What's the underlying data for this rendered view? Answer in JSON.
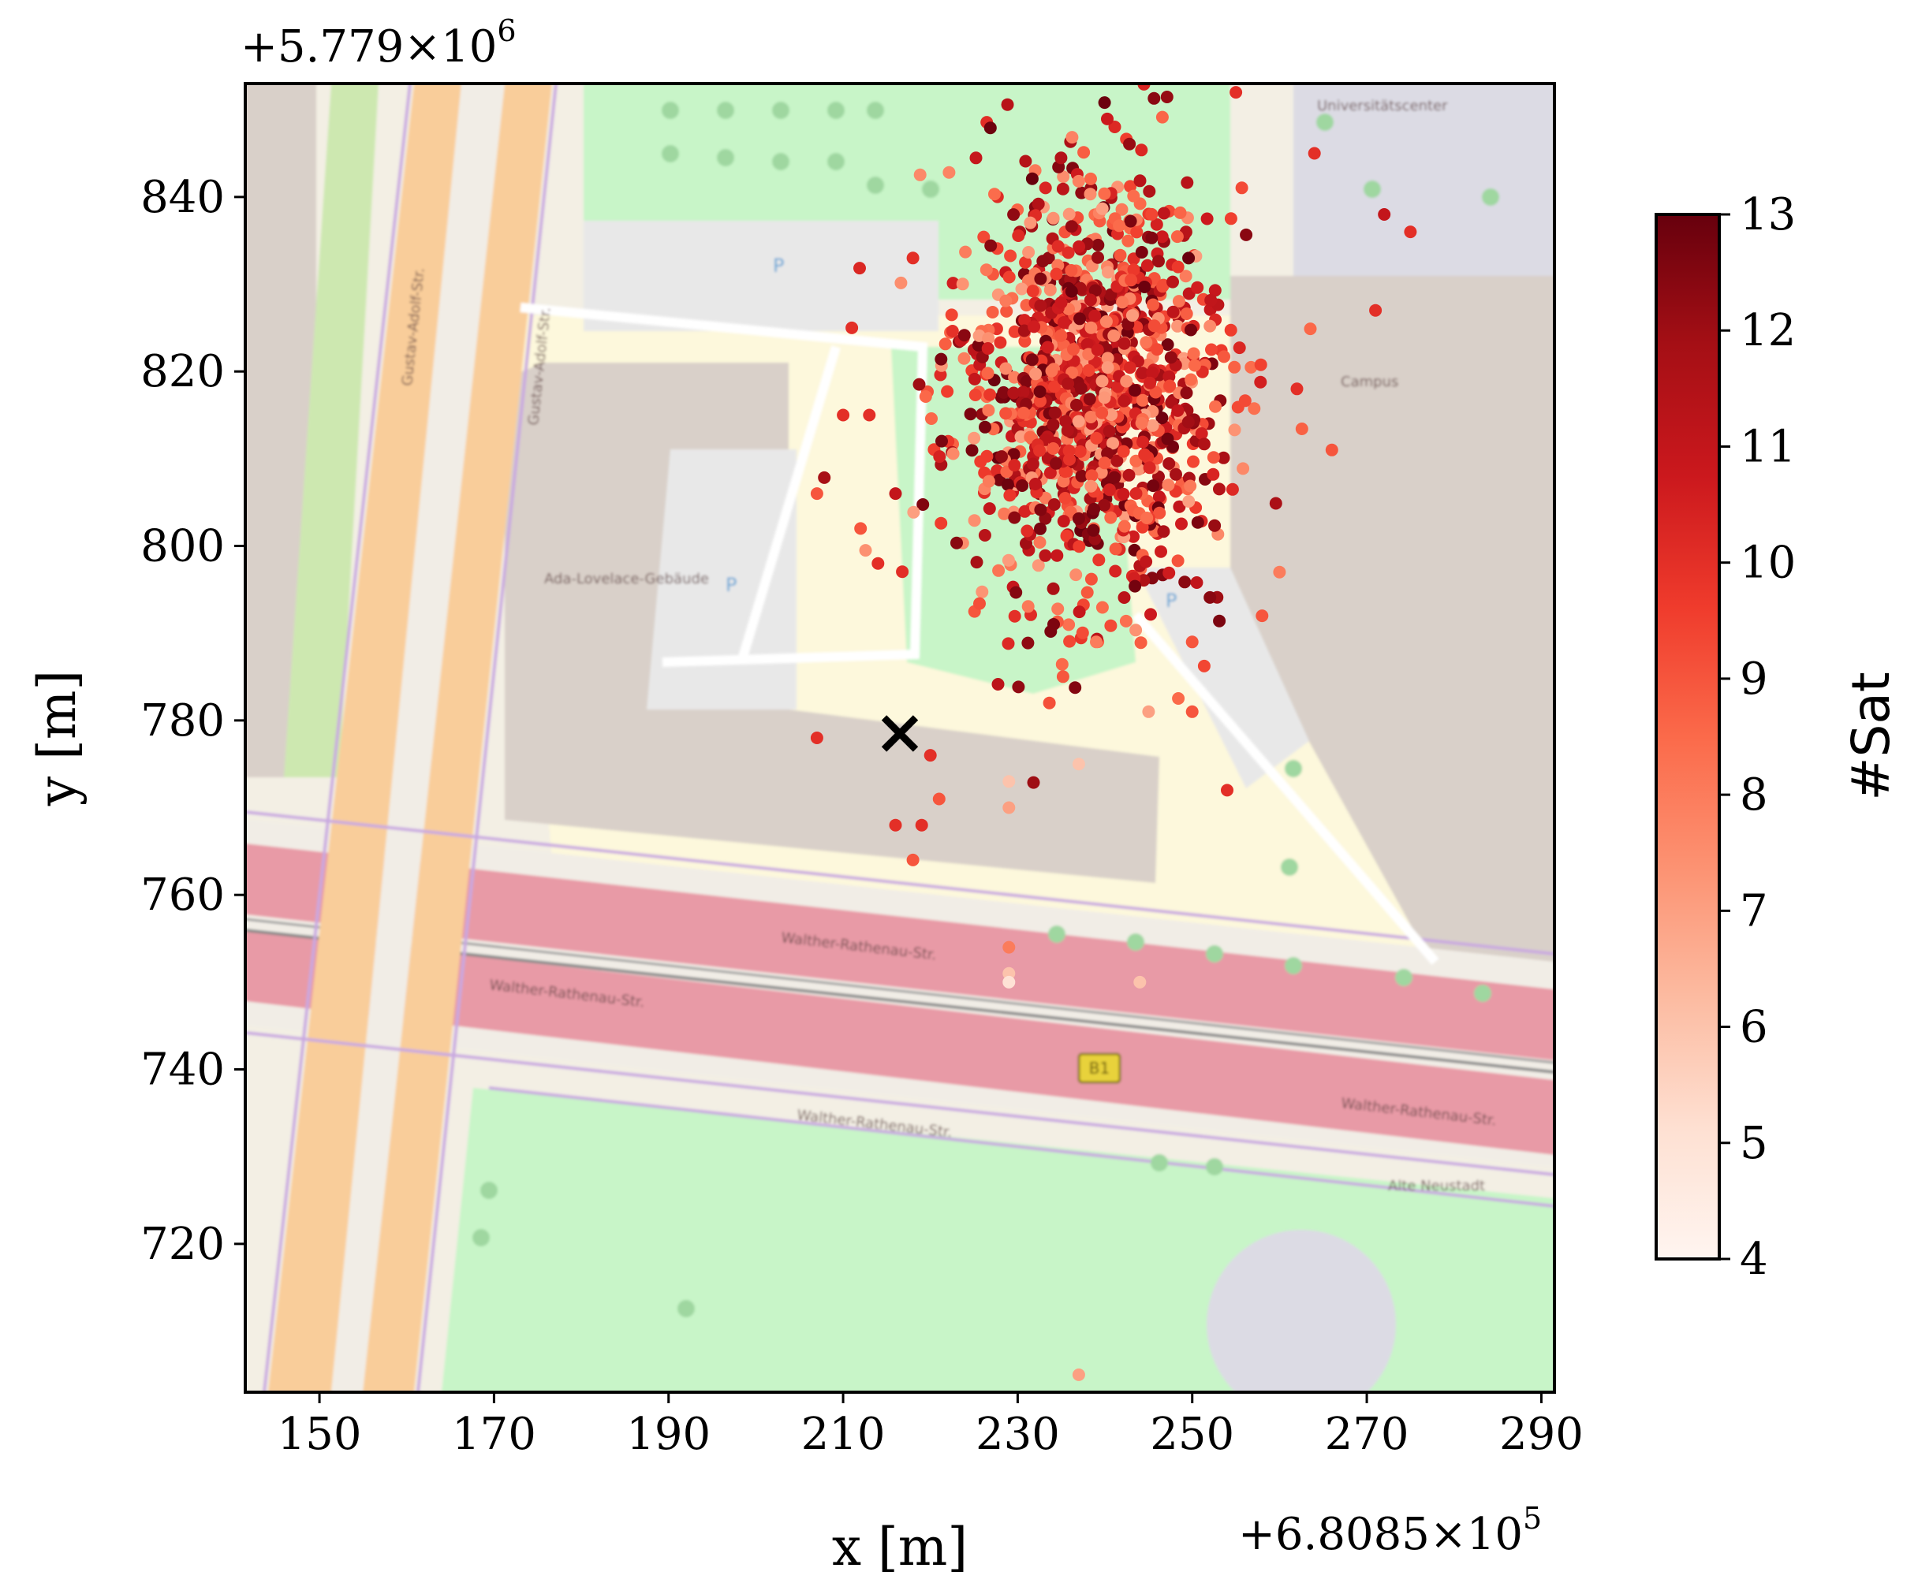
{
  "chart_data": {
    "type": "scatter",
    "xlabel": "x [m]",
    "ylabel": "y [m]",
    "x_offset_text": "+6.8085×10",
    "x_offset_exp": "5",
    "y_offset_text": "+5.779×10",
    "y_offset_exp": "6",
    "xlim": [
      141.5,
      291.5
    ],
    "ylim": [
      703,
      853
    ],
    "xticks": [
      150,
      170,
      190,
      210,
      230,
      250,
      270,
      290
    ],
    "yticks": [
      720,
      740,
      760,
      780,
      800,
      820,
      840
    ],
    "colorbar": {
      "label": "#Sat",
      "cmap": "Reds",
      "range": [
        4,
        13
      ],
      "ticks": [
        4,
        5,
        6,
        7,
        8,
        9,
        10,
        11,
        12,
        13
      ]
    },
    "reference_marker": {
      "symbol": "x",
      "x": 216.5,
      "y": 778.5
    },
    "cluster": {
      "center": [
        238,
        818
      ],
      "std": [
        7.5,
        12
      ],
      "count": 1150,
      "sat_range": [
        7,
        13
      ]
    },
    "outliers": [
      {
        "x": 207,
        "y": 778,
        "sat": 10
      },
      {
        "x": 216,
        "y": 768,
        "sat": 10
      },
      {
        "x": 219,
        "y": 768,
        "sat": 10
      },
      {
        "x": 218,
        "y": 764,
        "sat": 9
      },
      {
        "x": 220,
        "y": 776,
        "sat": 10
      },
      {
        "x": 221,
        "y": 771,
        "sat": 9
      },
      {
        "x": 229,
        "y": 773,
        "sat": 6
      },
      {
        "x": 229,
        "y": 770,
        "sat": 7
      },
      {
        "x": 237,
        "y": 775,
        "sat": 6
      },
      {
        "x": 237,
        "y": 705,
        "sat": 7
      },
      {
        "x": 229,
        "y": 754,
        "sat": 8
      },
      {
        "x": 229,
        "y": 751,
        "sat": 6
      },
      {
        "x": 229,
        "y": 750,
        "sat": 5
      },
      {
        "x": 244,
        "y": 750,
        "sat": 6
      },
      {
        "x": 254,
        "y": 772,
        "sat": 10
      },
      {
        "x": 210,
        "y": 815,
        "sat": 10
      },
      {
        "x": 207,
        "y": 806,
        "sat": 9
      },
      {
        "x": 213,
        "y": 815,
        "sat": 10
      },
      {
        "x": 216,
        "y": 806,
        "sat": 11
      },
      {
        "x": 214,
        "y": 798,
        "sat": 10
      },
      {
        "x": 212,
        "y": 802,
        "sat": 9
      },
      {
        "x": 218,
        "y": 833,
        "sat": 10
      },
      {
        "x": 211,
        "y": 825,
        "sat": 10
      },
      {
        "x": 272,
        "y": 838,
        "sat": 11
      },
      {
        "x": 275,
        "y": 836,
        "sat": 10
      },
      {
        "x": 271,
        "y": 827,
        "sat": 10
      },
      {
        "x": 266,
        "y": 811,
        "sat": 9
      },
      {
        "x": 262,
        "y": 818,
        "sat": 10
      },
      {
        "x": 264,
        "y": 845,
        "sat": 10
      },
      {
        "x": 255,
        "y": 852,
        "sat": 10
      },
      {
        "x": 258,
        "y": 792,
        "sat": 9
      },
      {
        "x": 260,
        "y": 797,
        "sat": 8
      },
      {
        "x": 250,
        "y": 789,
        "sat": 9
      },
      {
        "x": 250,
        "y": 781,
        "sat": 9
      },
      {
        "x": 245,
        "y": 781,
        "sat": 7
      },
      {
        "x": 239,
        "y": 789,
        "sat": 8
      }
    ]
  },
  "map_labels": {
    "street_a": "Gustav-Adolf-Str.",
    "street_b": "Walther-Rathenau-Str.",
    "street_c": "Walther-Rathenau-Str.",
    "building": "Ada-Lovelace-Gebäude",
    "univ": "Universitätscenter",
    "cafe": "Campus",
    "shield": "B1",
    "parking": "P",
    "stop": "Alte Neustadt"
  }
}
